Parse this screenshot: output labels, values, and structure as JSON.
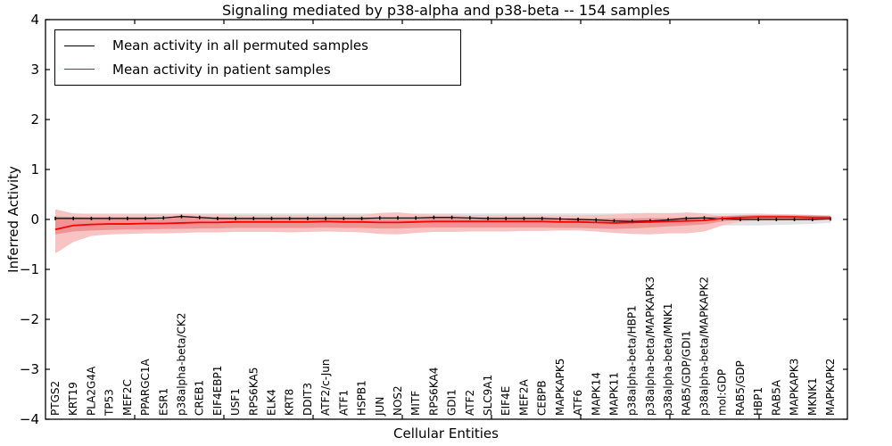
{
  "chart_data": {
    "type": "line",
    "title": "Signaling mediated by p38-alpha and p38-beta -- 154 samples",
    "xlabel": "Cellular Entities",
    "ylabel": "Inferred Activity",
    "ylim": [
      -4,
      4
    ],
    "yticks": [
      4,
      3,
      2,
      1,
      0,
      -1,
      -2,
      -3,
      -4
    ],
    "grid": false,
    "legend_position": "upper-left",
    "categories": [
      "PTGS2",
      "KRT19",
      "PLA2G4A",
      "TP53",
      "MEF2C",
      "PPARGC1A",
      "ESR1",
      "p38alpha-beta/CK2",
      "CREB1",
      "EIF4EBP1",
      "USF1",
      "RPS6KA5",
      "ELK4",
      "KRT8",
      "DDIT3",
      "ATF2/c-Jun",
      "ATF1",
      "HSPB1",
      "JUN",
      "NOS2",
      "MITF",
      "RPS6KA4",
      "GDI1",
      "ATF2",
      "SLC9A1",
      "EIF4E",
      "MEF2A",
      "CEBPB",
      "MAPKAPK5",
      "ATF6",
      "MAPK14",
      "MAPK11",
      "p38alpha-beta/HBP1",
      "p38alpha-beta/MAPKAPK3",
      "p38alpha-beta/MNK1",
      "RAB5/GDP/GDI1",
      "p38alpha-beta/MAPKAPK2",
      "mol:GDP",
      "RAB5/GDP",
      "HBP1",
      "RAB5A",
      "MAPKAPK3",
      "MKNK1",
      "MAPKAPK2"
    ],
    "series": [
      {
        "name": "Mean activity in all permuted samples",
        "color": "#000000",
        "marker": "tick",
        "values": [
          0.02,
          0.02,
          0.02,
          0.02,
          0.02,
          0.02,
          0.03,
          0.06,
          0.04,
          0.02,
          0.02,
          0.02,
          0.02,
          0.02,
          0.02,
          0.02,
          0.02,
          0.02,
          0.03,
          0.03,
          0.03,
          0.04,
          0.04,
          0.03,
          0.02,
          0.02,
          0.02,
          0.02,
          0.01,
          0.0,
          -0.01,
          -0.03,
          -0.04,
          -0.03,
          -0.01,
          0.02,
          0.03,
          0.01,
          0.0,
          0.0,
          0.0,
          0.0,
          0.0,
          0.01
        ]
      },
      {
        "name": "Mean activity in patient samples",
        "color": "#ff0000",
        "marker": "none",
        "values": [
          -0.2,
          -0.12,
          -0.1,
          -0.09,
          -0.09,
          -0.08,
          -0.08,
          -0.07,
          -0.06,
          -0.06,
          -0.05,
          -0.05,
          -0.05,
          -0.05,
          -0.05,
          -0.04,
          -0.05,
          -0.05,
          -0.06,
          -0.06,
          -0.05,
          -0.04,
          -0.04,
          -0.04,
          -0.04,
          -0.04,
          -0.04,
          -0.04,
          -0.05,
          -0.05,
          -0.06,
          -0.07,
          -0.06,
          -0.05,
          -0.04,
          -0.03,
          -0.02,
          0.02,
          0.04,
          0.05,
          0.05,
          0.05,
          0.04,
          0.04
        ]
      }
    ],
    "bands": [
      {
        "name": "permuted-range",
        "color": "#e3e3e3",
        "hi": [
          0.12,
          0.12,
          0.12,
          0.12,
          0.12,
          0.12,
          0.12,
          0.12,
          0.12,
          0.12,
          0.12,
          0.12,
          0.12,
          0.12,
          0.12,
          0.12,
          0.12,
          0.12,
          0.12,
          0.12,
          0.12,
          0.12,
          0.12,
          0.12,
          0.12,
          0.12,
          0.12,
          0.12,
          0.12,
          0.12,
          0.12,
          0.12,
          0.13,
          0.13,
          0.13,
          0.13,
          0.12,
          0.12,
          0.12,
          0.12,
          0.11,
          0.1,
          0.09,
          0.07
        ],
        "lo": [
          -0.12,
          -0.12,
          -0.12,
          -0.12,
          -0.12,
          -0.12,
          -0.12,
          -0.12,
          -0.12,
          -0.12,
          -0.12,
          -0.12,
          -0.12,
          -0.12,
          -0.12,
          -0.12,
          -0.12,
          -0.12,
          -0.12,
          -0.12,
          -0.12,
          -0.12,
          -0.12,
          -0.12,
          -0.12,
          -0.12,
          -0.12,
          -0.12,
          -0.12,
          -0.12,
          -0.12,
          -0.12,
          -0.13,
          -0.13,
          -0.13,
          -0.13,
          -0.12,
          -0.12,
          -0.12,
          -0.12,
          -0.11,
          -0.1,
          -0.09,
          -0.07
        ]
      },
      {
        "name": "patient-outer",
        "color": "#f7c3c3",
        "hi": [
          0.2,
          0.12,
          0.1,
          0.1,
          0.1,
          0.1,
          0.1,
          0.11,
          0.1,
          0.1,
          0.09,
          0.09,
          0.09,
          0.09,
          0.09,
          0.09,
          0.09,
          0.09,
          0.13,
          0.14,
          0.11,
          0.1,
          0.1,
          0.09,
          0.09,
          0.09,
          0.08,
          0.08,
          0.08,
          0.08,
          0.09,
          0.1,
          0.12,
          0.13,
          0.12,
          0.14,
          0.12,
          0.06,
          0.09,
          0.1,
          0.1,
          0.1,
          0.09,
          0.08
        ],
        "lo": [
          -0.68,
          -0.45,
          -0.33,
          -0.3,
          -0.29,
          -0.28,
          -0.28,
          -0.27,
          -0.26,
          -0.26,
          -0.25,
          -0.25,
          -0.25,
          -0.26,
          -0.25,
          -0.24,
          -0.25,
          -0.26,
          -0.29,
          -0.3,
          -0.27,
          -0.25,
          -0.25,
          -0.24,
          -0.24,
          -0.24,
          -0.23,
          -0.23,
          -0.22,
          -0.22,
          -0.24,
          -0.27,
          -0.29,
          -0.3,
          -0.28,
          -0.28,
          -0.24,
          -0.12,
          -0.05,
          -0.03,
          -0.02,
          -0.02,
          -0.02,
          -0.01
        ]
      },
      {
        "name": "patient-inner",
        "color": "#ee9494",
        "hi": [
          0.06,
          0.05,
          0.04,
          0.04,
          0.04,
          0.04,
          0.04,
          0.05,
          0.04,
          0.04,
          0.03,
          0.03,
          0.03,
          0.03,
          0.03,
          0.03,
          0.03,
          0.03,
          0.03,
          0.03,
          0.03,
          0.04,
          0.04,
          0.03,
          0.03,
          0.03,
          0.03,
          0.03,
          0.02,
          0.02,
          0.02,
          0.02,
          0.02,
          0.03,
          0.03,
          0.04,
          0.05,
          0.07,
          0.08,
          0.09,
          0.09,
          0.08,
          0.08,
          0.07
        ],
        "lo": [
          -0.3,
          -0.24,
          -0.22,
          -0.21,
          -0.2,
          -0.2,
          -0.19,
          -0.19,
          -0.18,
          -0.18,
          -0.17,
          -0.17,
          -0.17,
          -0.17,
          -0.17,
          -0.16,
          -0.17,
          -0.17,
          -0.18,
          -0.18,
          -0.17,
          -0.16,
          -0.16,
          -0.16,
          -0.16,
          -0.16,
          -0.16,
          -0.16,
          -0.17,
          -0.17,
          -0.18,
          -0.19,
          -0.18,
          -0.16,
          -0.14,
          -0.12,
          -0.1,
          -0.04,
          -0.01,
          0.0,
          0.0,
          0.0,
          0.0,
          0.01
        ]
      }
    ]
  }
}
